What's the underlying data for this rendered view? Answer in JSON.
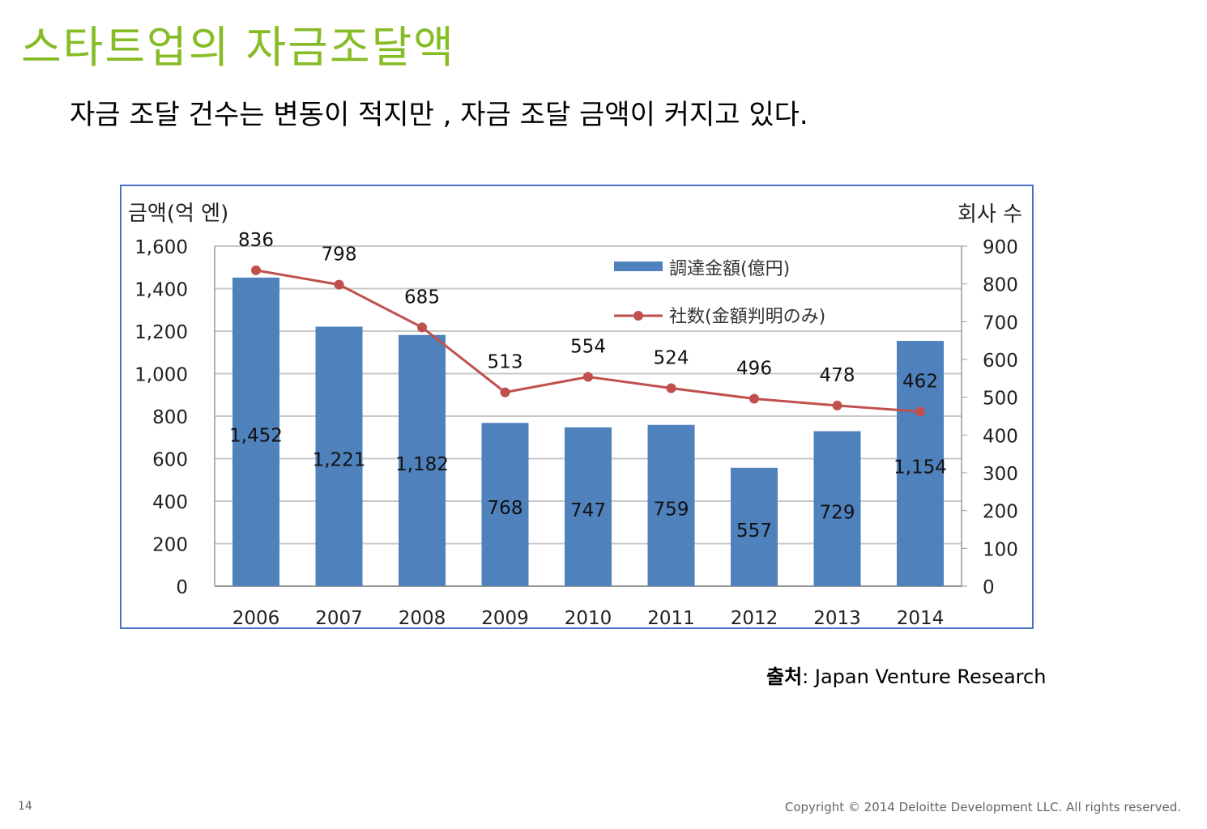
{
  "header": {
    "title": "스타트업의 자금조달액",
    "subtitle": "자금 조달 건수는 변동이 적지만 , 자금 조달 금액이 커지고 있다."
  },
  "chart_data": {
    "type": "bar+line",
    "categories": [
      "2006",
      "2007",
      "2008",
      "2009",
      "2010",
      "2011",
      "2012",
      "2013",
      "2014"
    ],
    "series": [
      {
        "name": "調達金額(億円)",
        "type": "bar",
        "axis": "left",
        "color": "#4f81bd",
        "values": [
          1452,
          1221,
          1182,
          768,
          747,
          759,
          557,
          729,
          1154
        ],
        "labels": [
          "1,452",
          "1,221",
          "1,182",
          "768",
          "747",
          "759",
          "557",
          "729",
          "1,154"
        ]
      },
      {
        "name": "社数(金額判明のみ)",
        "type": "line",
        "axis": "right",
        "color": "#c0504d",
        "values": [
          836,
          798,
          685,
          513,
          554,
          524,
          496,
          478,
          462
        ],
        "labels": [
          "836",
          "798",
          "685",
          "513",
          "554",
          "524",
          "496",
          "478",
          "462"
        ]
      }
    ],
    "ylabel": "금액(억 엔)",
    "y2label": "회사 수",
    "ylim": [
      0,
      1600
    ],
    "y2lim": [
      0,
      900
    ],
    "yticks": [
      "0",
      "200",
      "400",
      "600",
      "800",
      "1,000",
      "1,200",
      "1,400",
      "1,600"
    ],
    "y2ticks": [
      "0",
      "100",
      "200",
      "300",
      "400",
      "500",
      "600",
      "700",
      "800",
      "900"
    ],
    "grid": true,
    "legend": "top-right"
  },
  "footer": {
    "source_label": "출처",
    "source_text": ": Japan Venture Research",
    "page": "14",
    "copyright": "Copyright © 2014 Deloitte Development LLC. All rights reserved."
  }
}
